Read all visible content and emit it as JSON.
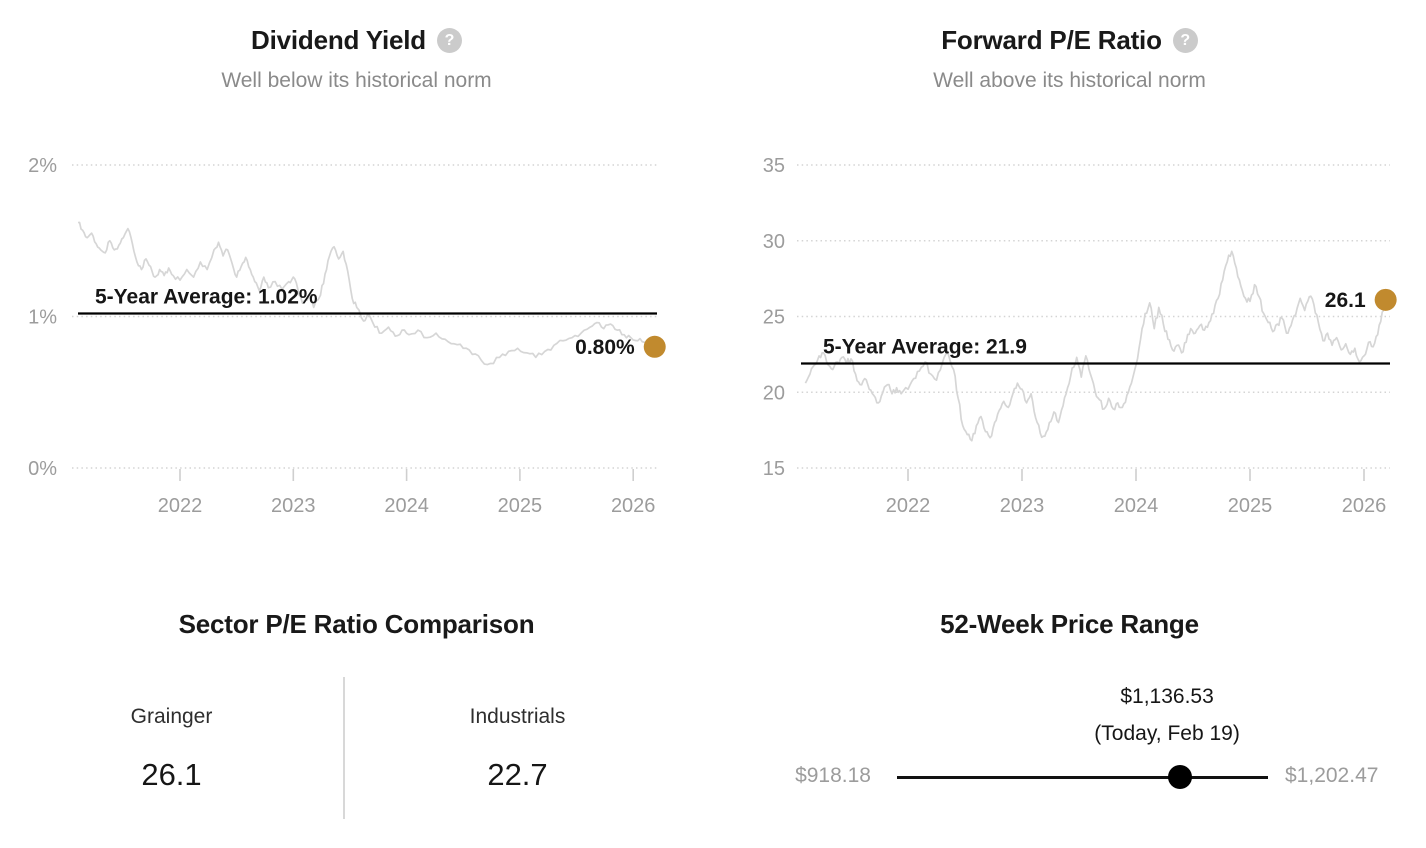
{
  "colors": {
    "marker_gold": "#c18a2e",
    "series_gray": "#d6d6d6",
    "axis_gray": "#9c9c9c",
    "grid_gray": "#d4d4d4",
    "tick_gray": "#cfcfcf",
    "average_black": "#000000",
    "text_black": "#161616"
  },
  "panels": {
    "dividend_yield": {
      "title": "Dividend Yield",
      "help_icon": "?",
      "subtitle": "Well below its historical norm"
    },
    "forward_pe": {
      "title": "Forward P/E Ratio",
      "help_icon": "?",
      "subtitle": "Well above its historical norm"
    },
    "sector_comparison": {
      "title": "Sector P/E Ratio Comparison",
      "columns": [
        {
          "label": "Grainger",
          "value": "26.1"
        },
        {
          "label": "Industrials",
          "value": "22.7"
        }
      ]
    },
    "price_range": {
      "title": "52-Week Price Range",
      "current_price": "$1,136.53",
      "current_note": "(Today, Feb 19)",
      "low": "$918.18",
      "high": "$1,202.47",
      "position_pct": 76.3
    }
  },
  "chart_data": [
    {
      "id": "dividend_yield",
      "type": "line",
      "title": "Dividend Yield",
      "subtitle": "Well below its historical norm",
      "grid": "dotted-horizontal",
      "legend": "none",
      "xlim": [
        2021.05,
        2026.3
      ],
      "ylim": [
        0,
        2
      ],
      "x_axis": {
        "ticks": [
          2022,
          2023,
          2024,
          2025,
          2026
        ]
      },
      "y_axis": {
        "ticks": [
          {
            "label": "2%",
            "value": 2
          },
          {
            "label": "1%",
            "value": 1
          },
          {
            "label": "0%",
            "value": 0
          }
        ]
      },
      "average": {
        "label": "5-Year Average: 1.02%",
        "value": 1.02
      },
      "current": {
        "label": "0.80%",
        "value": 0.8,
        "x": 2026.19
      },
      "style": {
        "jitter": 0.018
      },
      "series": [
        {
          "name": "Dividend Yield %",
          "x": [
            2021.1,
            2021.14,
            2021.18,
            2021.22,
            2021.26,
            2021.3,
            2021.34,
            2021.38,
            2021.42,
            2021.46,
            2021.5,
            2021.54,
            2021.58,
            2021.62,
            2021.66,
            2021.7,
            2021.74,
            2021.78,
            2021.82,
            2021.86,
            2021.9,
            2021.94,
            2022.0,
            2022.06,
            2022.12,
            2022.18,
            2022.24,
            2022.3,
            2022.34,
            2022.38,
            2022.42,
            2022.46,
            2022.5,
            2022.54,
            2022.58,
            2022.62,
            2022.66,
            2022.7,
            2022.74,
            2022.78,
            2022.84,
            2022.9,
            2022.96,
            2023.0,
            2023.04,
            2023.08,
            2023.14,
            2023.18,
            2023.24,
            2023.28,
            2023.32,
            2023.36,
            2023.4,
            2023.44,
            2023.48,
            2023.52,
            2023.56,
            2023.62,
            2023.66,
            2023.72,
            2023.78,
            2023.84,
            2023.9,
            2023.96,
            2024.02,
            2024.1,
            2024.18,
            2024.26,
            2024.34,
            2024.42,
            2024.5,
            2024.58,
            2024.66,
            2024.74,
            2024.82,
            2024.9,
            2024.98,
            2025.06,
            2025.14,
            2025.22,
            2025.3,
            2025.38,
            2025.46,
            2025.54,
            2025.62,
            2025.68,
            2025.74,
            2025.8,
            2025.86,
            2025.92,
            2025.98,
            2026.04,
            2026.1,
            2026.19
          ],
          "y": [
            1.62,
            1.57,
            1.52,
            1.55,
            1.48,
            1.44,
            1.42,
            1.5,
            1.44,
            1.47,
            1.52,
            1.58,
            1.48,
            1.36,
            1.31,
            1.38,
            1.33,
            1.26,
            1.31,
            1.27,
            1.32,
            1.27,
            1.24,
            1.31,
            1.26,
            1.36,
            1.31,
            1.44,
            1.49,
            1.4,
            1.44,
            1.35,
            1.26,
            1.33,
            1.39,
            1.31,
            1.23,
            1.17,
            1.26,
            1.19,
            1.23,
            1.18,
            1.23,
            1.26,
            1.18,
            1.09,
            1.13,
            1.06,
            1.14,
            1.28,
            1.4,
            1.46,
            1.38,
            1.43,
            1.3,
            1.12,
            1.06,
            0.97,
            1.02,
            0.93,
            0.89,
            0.93,
            0.87,
            0.91,
            0.88,
            0.91,
            0.86,
            0.89,
            0.85,
            0.82,
            0.79,
            0.75,
            0.71,
            0.69,
            0.73,
            0.77,
            0.79,
            0.76,
            0.73,
            0.77,
            0.81,
            0.84,
            0.86,
            0.89,
            0.93,
            0.96,
            0.92,
            0.95,
            0.91,
            0.88,
            0.86,
            0.84,
            0.83,
            0.8
          ]
        }
      ]
    },
    {
      "id": "forward_pe",
      "type": "line",
      "title": "Forward P/E Ratio",
      "subtitle": "Well above its historical norm",
      "grid": "dotted-horizontal",
      "legend": "none",
      "xlim": [
        2021.05,
        2026.3
      ],
      "ylim": [
        15,
        35
      ],
      "x_axis": {
        "ticks": [
          2022,
          2023,
          2024,
          2025,
          2026
        ]
      },
      "y_axis": {
        "ticks": [
          {
            "label": "35",
            "value": 35
          },
          {
            "label": "30",
            "value": 30
          },
          {
            "label": "25",
            "value": 25
          },
          {
            "label": "20",
            "value": 20
          },
          {
            "label": "15",
            "value": 15
          }
        ]
      },
      "average": {
        "label": "5-Year Average: 21.9",
        "value": 21.9
      },
      "current": {
        "label": "26.1",
        "value": 26.1,
        "x": 2026.19
      },
      "style": {
        "jitter": 0.22
      },
      "series": [
        {
          "name": "Forward P/E",
          "x": [
            2021.1,
            2021.14,
            2021.18,
            2021.22,
            2021.26,
            2021.3,
            2021.34,
            2021.38,
            2021.42,
            2021.46,
            2021.5,
            2021.54,
            2021.58,
            2021.62,
            2021.66,
            2021.7,
            2021.74,
            2021.78,
            2021.82,
            2021.86,
            2021.9,
            2021.94,
            2022.0,
            2022.05,
            2022.1,
            2022.15,
            2022.2,
            2022.25,
            2022.3,
            2022.35,
            2022.4,
            2022.44,
            2022.48,
            2022.52,
            2022.56,
            2022.6,
            2022.64,
            2022.68,
            2022.72,
            2022.76,
            2022.8,
            2022.84,
            2022.88,
            2022.92,
            2022.96,
            2023.0,
            2023.04,
            2023.08,
            2023.12,
            2023.16,
            2023.2,
            2023.24,
            2023.28,
            2023.32,
            2023.36,
            2023.4,
            2023.44,
            2023.48,
            2023.52,
            2023.56,
            2023.6,
            2023.64,
            2023.68,
            2023.72,
            2023.76,
            2023.8,
            2023.84,
            2023.88,
            2023.92,
            2023.96,
            2024.0,
            2024.04,
            2024.08,
            2024.12,
            2024.16,
            2024.2,
            2024.24,
            2024.28,
            2024.32,
            2024.36,
            2024.4,
            2024.44,
            2024.48,
            2024.52,
            2024.56,
            2024.6,
            2024.64,
            2024.68,
            2024.72,
            2024.76,
            2024.8,
            2024.84,
            2024.88,
            2024.92,
            2024.96,
            2025.0,
            2025.04,
            2025.08,
            2025.12,
            2025.16,
            2025.2,
            2025.24,
            2025.28,
            2025.32,
            2025.36,
            2025.4,
            2025.44,
            2025.48,
            2025.52,
            2025.56,
            2025.6,
            2025.64,
            2025.68,
            2025.72,
            2025.76,
            2025.8,
            2025.84,
            2025.88,
            2025.92,
            2025.96,
            2026.0,
            2026.04,
            2026.08,
            2026.12,
            2026.16,
            2026.19
          ],
          "y": [
            20.6,
            21.2,
            21.8,
            22.4,
            22.6,
            21.8,
            21.5,
            22.0,
            22.3,
            21.9,
            22.2,
            21.2,
            20.5,
            20.9,
            20.2,
            19.8,
            19.3,
            20.0,
            20.5,
            19.9,
            20.3,
            19.9,
            20.2,
            20.9,
            21.4,
            22.0,
            21.2,
            20.8,
            21.9,
            22.6,
            21.5,
            19.6,
            17.8,
            17.2,
            16.8,
            17.8,
            18.4,
            17.4,
            17.0,
            18.0,
            18.8,
            19.4,
            19.0,
            19.9,
            20.6,
            20.2,
            19.3,
            19.9,
            18.3,
            17.3,
            17.1,
            18.0,
            18.7,
            18.0,
            19.1,
            20.3,
            21.6,
            22.3,
            21.0,
            22.4,
            21.2,
            20.1,
            19.5,
            18.9,
            19.6,
            18.9,
            19.3,
            19.0,
            19.8,
            20.6,
            21.8,
            23.5,
            25.2,
            25.9,
            24.2,
            25.6,
            24.5,
            23.5,
            22.8,
            23.1,
            22.6,
            23.3,
            24.2,
            23.9,
            24.4,
            24.1,
            24.6,
            25.2,
            26.2,
            27.4,
            28.6,
            29.3,
            28.2,
            27.0,
            26.2,
            26.0,
            27.1,
            26.3,
            25.2,
            24.6,
            24.0,
            24.5,
            24.9,
            23.9,
            24.4,
            25.1,
            26.2,
            25.4,
            26.3,
            25.8,
            24.6,
            23.4,
            23.9,
            23.1,
            23.6,
            22.8,
            23.2,
            22.5,
            22.9,
            22.0,
            22.4,
            23.3,
            23.0,
            23.8,
            25.3,
            26.1
          ]
        }
      ]
    }
  ]
}
